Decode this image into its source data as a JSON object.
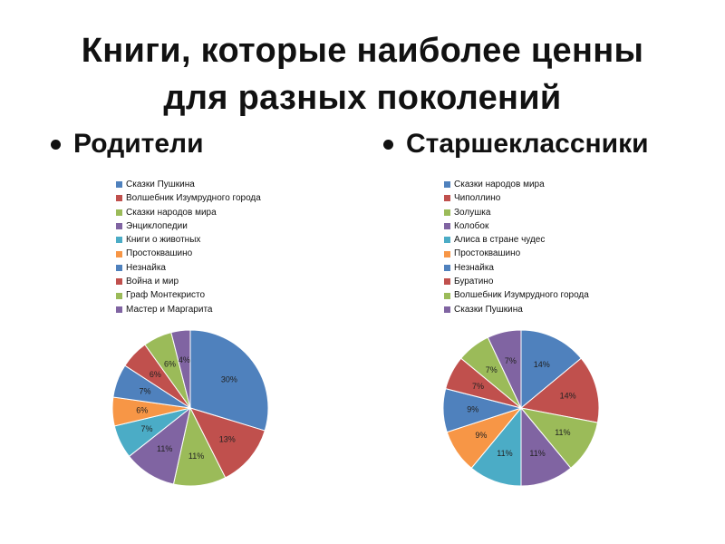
{
  "title_line1": "Книги, которые наиболее ценны",
  "title_line2": "для разных поколений",
  "chart_data": [
    {
      "type": "pie",
      "title": "Родители",
      "legend_position": "top",
      "categories": [
        "Сказки Пушкина",
        "Волшебник Изумрудного города",
        "Сказки народов мира",
        "Энциклопедии",
        "Книги о животных",
        "Простоквашино",
        "Незнайка",
        "Война и мир",
        "Граф Монтекристо",
        "Мастер и Маргарита"
      ],
      "values": [
        30,
        13,
        11,
        11,
        7,
        6,
        7,
        6,
        6,
        4
      ],
      "labels": [
        "30%",
        "13%",
        "11%",
        "11%",
        "7%",
        "6%",
        "7%",
        "6%",
        "6%",
        "4%"
      ],
      "colors": [
        "#4F81BD",
        "#C0504D",
        "#9BBB59",
        "#8064A2",
        "#4BACC6",
        "#F79646",
        "#4F81BD",
        "#C0504D",
        "#9BBB59",
        "#8064A2"
      ]
    },
    {
      "type": "pie",
      "title": "Старшеклассники",
      "legend_position": "top",
      "categories": [
        "Сказки народов мира",
        "Чиполлино",
        "Золушка",
        "Колобок",
        "Алиса в стране чудес",
        "Простоквашино",
        "Незнайка",
        "Буратино",
        "Волшебник Изумрудного города",
        "Сказки Пушкина"
      ],
      "values": [
        14,
        14,
        11,
        11,
        11,
        9,
        9,
        7,
        7,
        7
      ],
      "labels": [
        "14%",
        "14%",
        "11%",
        "11%",
        "11%",
        "9%",
        "9%",
        "7%",
        "7%",
        "7%"
      ],
      "colors": [
        "#4F81BD",
        "#C0504D",
        "#9BBB59",
        "#8064A2",
        "#4BACC6",
        "#F79646",
        "#4F81BD",
        "#C0504D",
        "#9BBB59",
        "#8064A2"
      ]
    }
  ]
}
